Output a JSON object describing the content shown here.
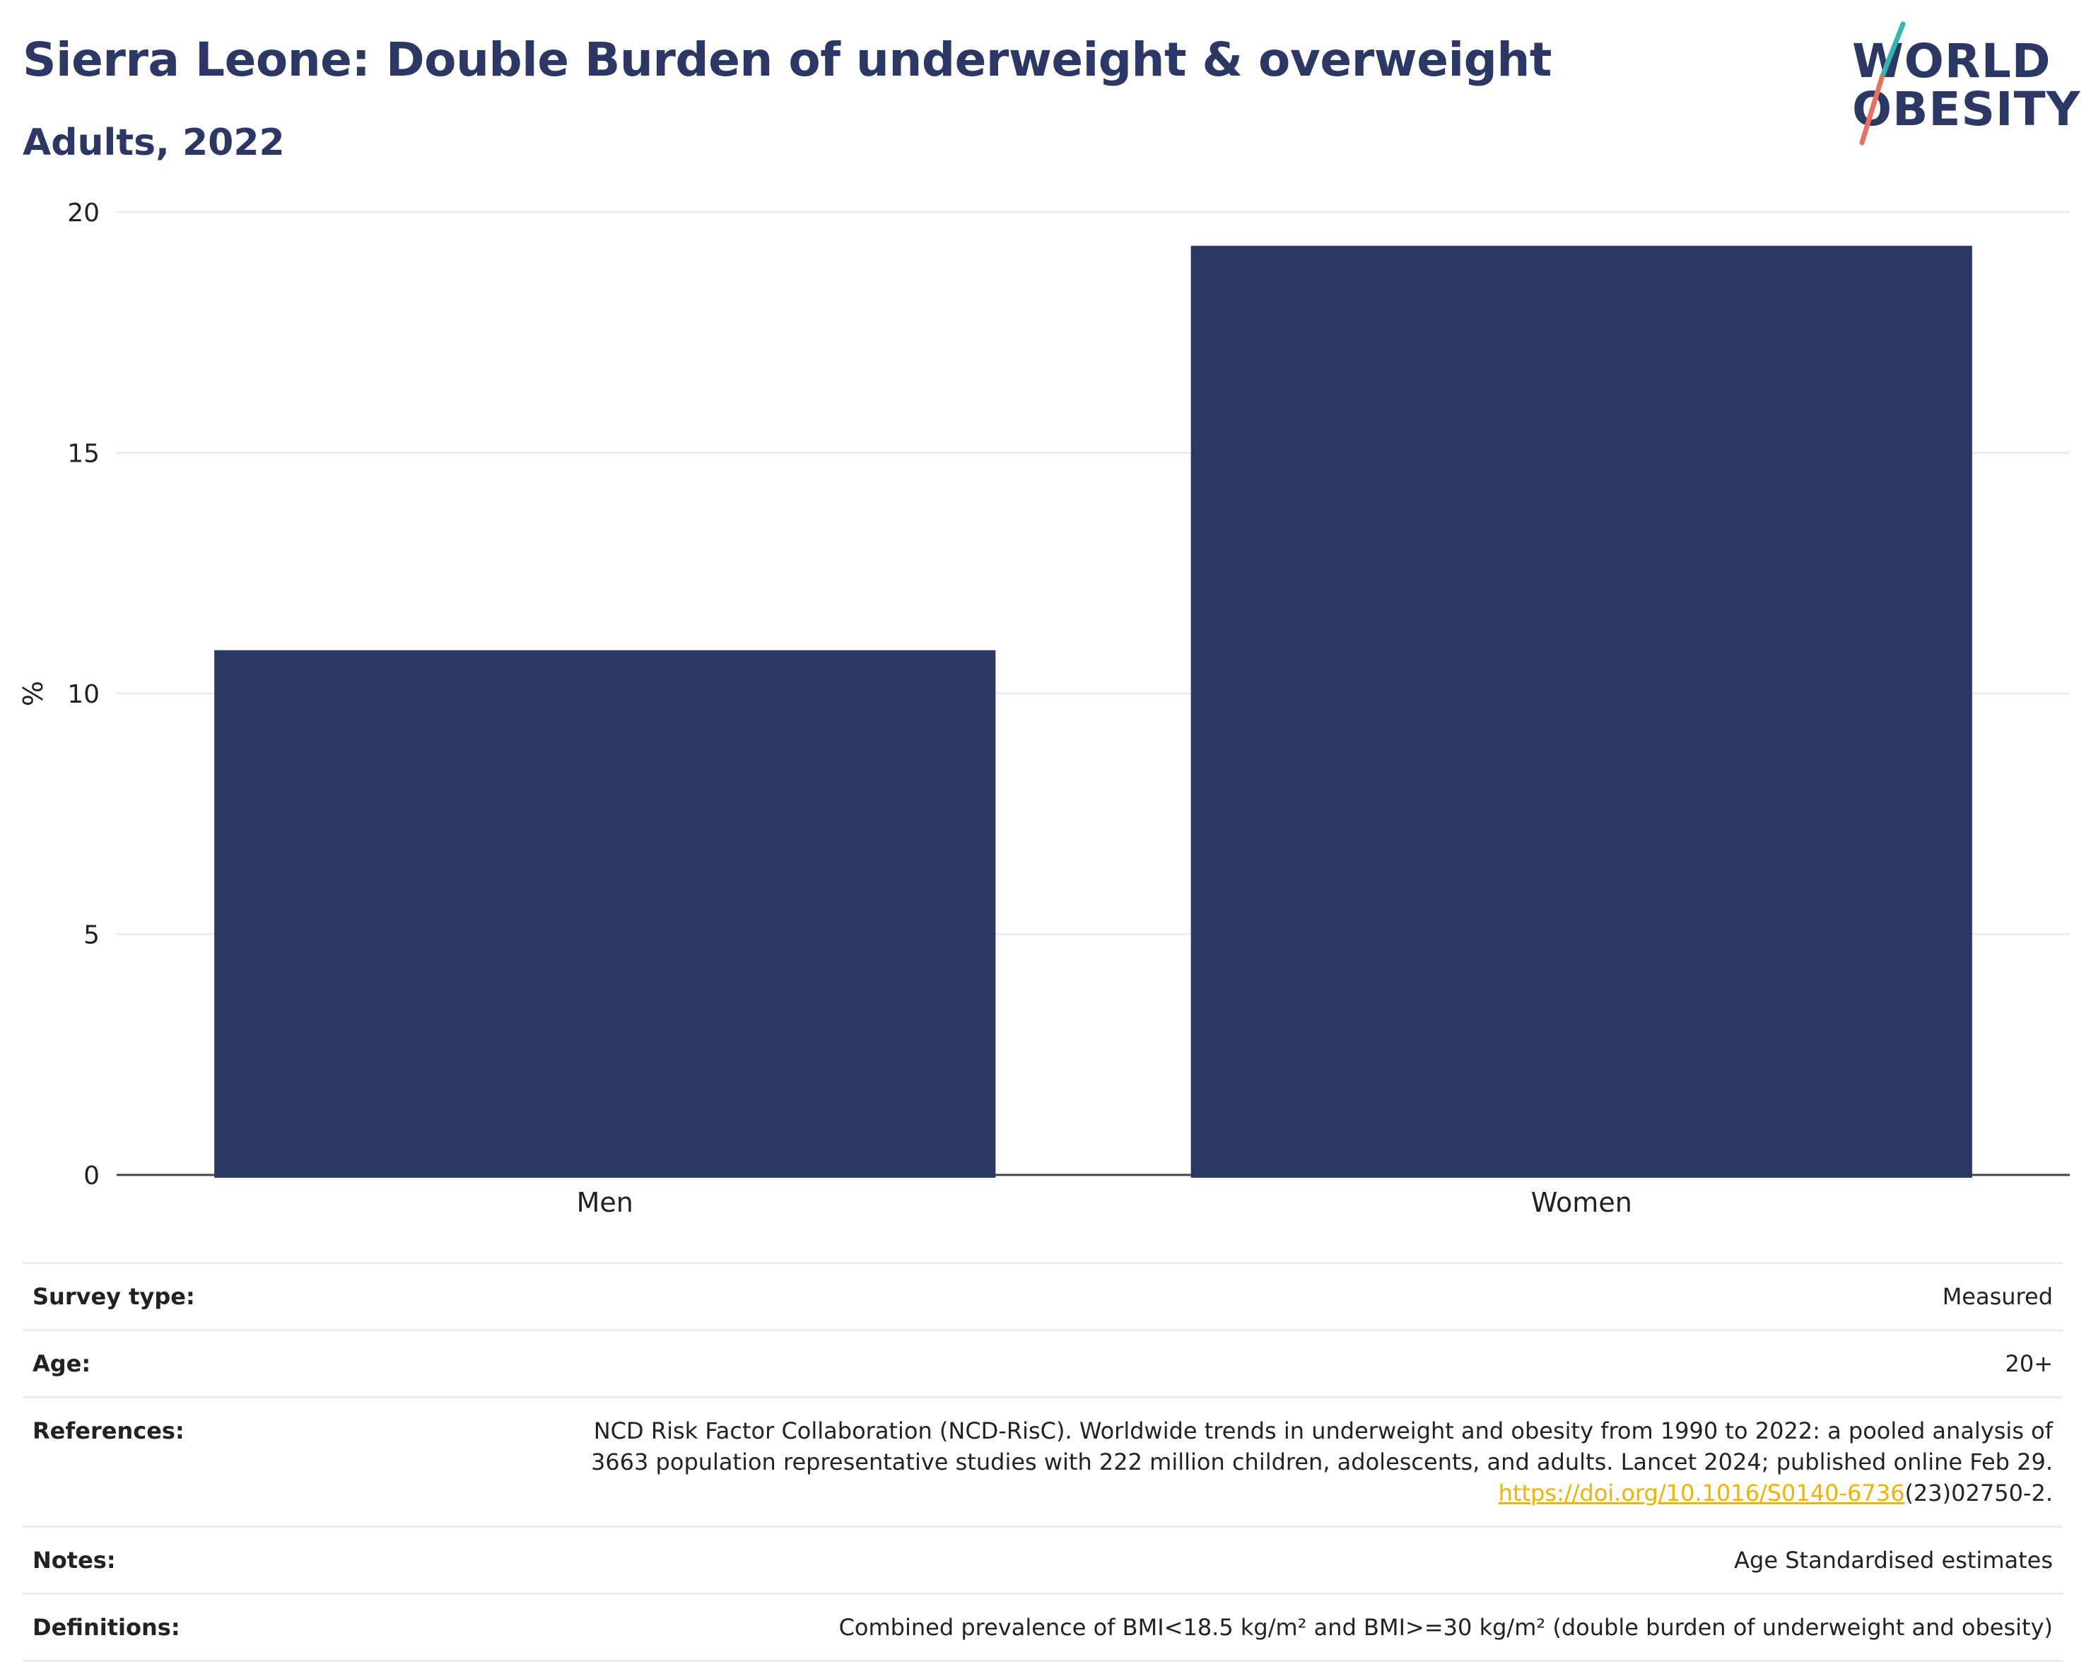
{
  "header": {
    "title": "Sierra Leone: Double Burden of underweight & overweight",
    "subtitle": "Adults, 2022"
  },
  "logo": {
    "line1": "WORLD",
    "line2": "OBESITY",
    "colors": {
      "text": "#2b3764",
      "slash_top": "#35b5b0",
      "slash_bottom": "#e8705c"
    }
  },
  "chart_data": {
    "type": "bar",
    "categories": [
      "Men",
      "Women"
    ],
    "values": [
      10.9,
      19.3
    ],
    "ylabel": "%",
    "xlabel": "",
    "ylim": [
      0,
      20
    ],
    "yticks": [
      0,
      5,
      10,
      15,
      20
    ],
    "grid": true,
    "bar_color": "#2b3764"
  },
  "meta": {
    "survey_type": {
      "label": "Survey type:",
      "value": "Measured"
    },
    "age": {
      "label": "Age:",
      "value": "20+"
    },
    "references": {
      "label": "References:",
      "line1": "NCD Risk Factor Collaboration (NCD-RisC). Worldwide trends in underweight and obesity from 1990 to 2022: a pooled analysis of",
      "line2": "3663 population representative studies with 222 million children, adolescents, and adults. Lancet 2024; published online Feb 29.",
      "link": "https://doi.org/10.1016/S0140-6736",
      "link_suffix": "(23)02750-2."
    },
    "notes": {
      "label": "Notes:",
      "value": "Age Standardised estimates"
    },
    "definitions": {
      "label": "Definitions:",
      "value": "Combined prevalence of BMI<18.5 kg/m² and BMI>=30 kg/m² (double burden of underweight and obesity)"
    }
  }
}
